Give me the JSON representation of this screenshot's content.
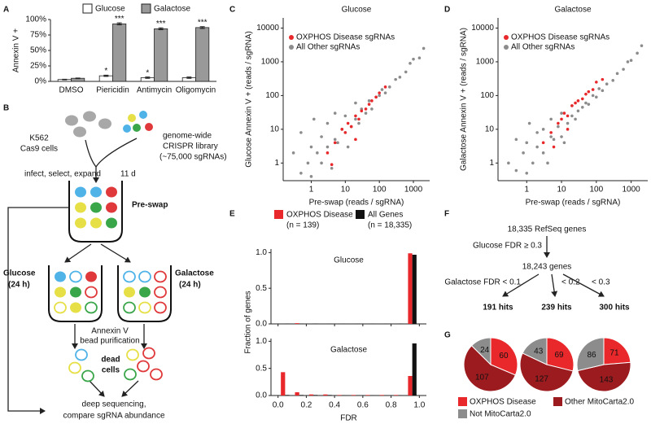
{
  "panel_labels": [
    "A",
    "B",
    "C",
    "D",
    "E",
    "F",
    "G"
  ],
  "chart_data": [
    {
      "type": "bar",
      "ylabel": "Annexin V +",
      "categories": [
        "DMSO",
        "Piericidin",
        "Antimycin",
        "Oligomycin"
      ],
      "series": [
        {
          "name": "Glucose",
          "color": "#ffffff",
          "values": [
            3,
            9,
            6,
            6
          ],
          "errors": [
            0.5,
            1,
            1,
            1
          ],
          "significance": [
            null,
            "*",
            "*",
            null
          ]
        },
        {
          "name": "Galactose",
          "color": "#999999",
          "values": [
            5,
            93,
            85,
            87
          ],
          "errors": [
            0.5,
            1.5,
            1.5,
            1.5
          ],
          "significance": [
            null,
            "***",
            "***",
            "***"
          ]
        }
      ],
      "ylim": [
        0,
        100
      ],
      "yticks": [
        {
          "value": 0,
          "label": "0%"
        },
        {
          "value": 25,
          "label": "25%"
        },
        {
          "value": 50,
          "label": "50%"
        },
        {
          "value": 75,
          "label": "75%"
        },
        {
          "value": 100,
          "label": "100%"
        }
      ]
    },
    {
      "type": "scatter",
      "title": "Glucose",
      "xlabel": "Pre-swap (reads / sgRNA)",
      "ylabel": "Glucose Annexin V + (reads / sgRNA)",
      "log": true,
      "xlim": [
        0.15,
        3000
      ],
      "ylim": [
        0.3,
        20000
      ],
      "xticks": [
        1,
        10,
        100,
        1000
      ],
      "yticks": [
        1,
        10,
        100,
        1000,
        10000
      ],
      "series": [
        {
          "name": "OXPHOS Disease sgRNAs",
          "color": "#e8282b",
          "x": [
            3,
            5,
            8,
            10,
            12,
            15,
            20,
            25,
            30,
            40,
            50,
            60,
            80,
            100,
            150,
            4,
            20
          ],
          "values": [
            2,
            4,
            10,
            8,
            15,
            12,
            25,
            20,
            35,
            40,
            55,
            70,
            90,
            120,
            180,
            0.9,
            5
          ]
        },
        {
          "name": "All Other sgRNAs",
          "color": "#8c8c8c",
          "x": [
            0.3,
            0.5,
            0.5,
            0.8,
            1,
            1,
            1.2,
            1.5,
            2,
            2,
            3,
            3,
            4,
            5,
            5,
            6,
            8,
            10,
            10,
            12,
            15,
            20,
            20,
            25,
            30,
            40,
            50,
            60,
            80,
            100,
            120,
            150,
            200,
            300,
            400,
            600,
            800,
            1000,
            1500,
            2000
          ],
          "values": [
            2,
            0.5,
            8,
            1,
            3,
            0.4,
            20,
            2,
            1,
            6,
            3,
            15,
            0.7,
            5,
            30,
            4,
            10,
            8,
            25,
            3,
            12,
            20,
            60,
            15,
            40,
            30,
            70,
            40,
            90,
            100,
            150,
            120,
            180,
            300,
            350,
            500,
            900,
            1200,
            1300,
            2500
          ]
        }
      ]
    },
    {
      "type": "scatter",
      "title": "Galactose",
      "xlabel": "Pre-swap (reads / sgRNA)",
      "ylabel": "Galactose Annexin V + (reads / sgRNA)",
      "log": true,
      "xlim": [
        0.15,
        3000
      ],
      "ylim": [
        0.3,
        20000
      ],
      "xticks": [
        1,
        10,
        100,
        1000
      ],
      "yticks": [
        1,
        10,
        100,
        1000,
        10000
      ],
      "series": [
        {
          "name": "OXPHOS Disease sgRNAs",
          "color": "#e8282b",
          "x": [
            3,
            5,
            8,
            10,
            12,
            15,
            20,
            25,
            30,
            40,
            50,
            60,
            80,
            100,
            150,
            6,
            15
          ],
          "values": [
            4,
            8,
            15,
            20,
            30,
            25,
            50,
            60,
            70,
            80,
            110,
            130,
            150,
            250,
            300,
            3,
            10
          ]
        },
        {
          "name": "All Other sgRNAs",
          "color": "#8c8c8c",
          "x": [
            0.3,
            0.5,
            0.5,
            0.8,
            1,
            1,
            1.2,
            1.5,
            2,
            2,
            3,
            3,
            4,
            5,
            5,
            6,
            8,
            10,
            10,
            12,
            15,
            20,
            20,
            25,
            30,
            40,
            50,
            60,
            80,
            100,
            120,
            150,
            200,
            300,
            400,
            600,
            800,
            1000,
            1500,
            2000
          ],
          "values": [
            1,
            0.6,
            5,
            2,
            0.5,
            4,
            15,
            1,
            3,
            8,
            2,
            10,
            1,
            6,
            20,
            5,
            12,
            6,
            30,
            4,
            15,
            25,
            50,
            20,
            35,
            45,
            60,
            55,
            100,
            90,
            160,
            140,
            220,
            280,
            450,
            600,
            1000,
            1100,
            1800,
            3000
          ]
        }
      ]
    },
    {
      "type": "histogram",
      "xlabel": "FDR",
      "ylabel": "Fraction of genes",
      "bins": [
        0,
        0.1,
        0.2,
        0.3,
        0.4,
        0.5,
        0.6,
        0.7,
        0.8,
        0.9,
        1
      ],
      "xlim": [
        -0.05,
        1.05
      ],
      "xticks": [
        {
          "value": 0,
          "label": "0.0"
        },
        0.2,
        0.4,
        0.6,
        0.8,
        {
          "value": 1,
          "label": "1.0"
        }
      ],
      "ylim": [
        0,
        1.05
      ],
      "yticks": [
        {
          "value": 0,
          "label": "0.0"
        },
        0.5,
        {
          "value": 1,
          "label": "1.0"
        }
      ],
      "series": [
        {
          "name": "OXPHOS Disease",
          "note": "(n = 139)",
          "color": "#e8282b"
        },
        {
          "name": "All Genes",
          "note": "(n = 18,335)",
          "color": "#111111"
        }
      ],
      "facets": [
        {
          "title": "Glucose",
          "values": [
            [
              0,
              0.01,
              0,
              0,
              0,
              0,
              0,
              0,
              0,
              0.99
            ],
            [
              0.005,
              0.005,
              0.005,
              0.003,
              0.003,
              0.003,
              0.003,
              0.003,
              0.005,
              0.97
            ]
          ]
        },
        {
          "title": "Galactose",
          "values": [
            [
              0.43,
              0.06,
              0.02,
              0.02,
              0.01,
              0.01,
              0.01,
              0.01,
              0.01,
              0.36
            ],
            [
              0.01,
              0.01,
              0.01,
              0.01,
              0.005,
              0.005,
              0.005,
              0.005,
              0.005,
              0.96
            ]
          ]
        }
      ]
    },
    {
      "type": "pie",
      "series": [
        {
          "name": "OXPHOS Disease",
          "color": "#e8282b",
          "values": [
            60,
            69,
            71
          ]
        },
        {
          "name": "Other MitoCarta2.0",
          "color": "#9b1b1f",
          "values": [
            107,
            127,
            143
          ]
        },
        {
          "name": "Not MitoCarta2.0",
          "color": "#8c8c8c",
          "values": [
            24,
            43,
            86
          ]
        }
      ]
    }
  ],
  "diagram_b": {
    "cells_label": [
      "K562",
      "Cas9 cells"
    ],
    "library_label": [
      "genome-wide",
      "CRISPR library",
      "(~75,000 sgRNAs)"
    ],
    "step": "infect, select, expand",
    "duration": "11 d",
    "pre_swap": "Pre-swap",
    "glucose": [
      "Glucose",
      "(24 h)"
    ],
    "galactose": [
      "Galactose",
      "(24 h)"
    ],
    "purification": [
      "Annexin V",
      "bead purification"
    ],
    "dead_cells": [
      "dead",
      "cells"
    ],
    "readout": [
      "deep sequencing,",
      "compare sgRNA abundance"
    ]
  },
  "diagram_f": {
    "total": "18,335 RefSeq genes",
    "filter": "Glucose FDR ≥ 0.3",
    "remaining": "18,243 genes",
    "thresholds": [
      "Galactose FDR < 0.1",
      "< 0.2",
      "< 0.3"
    ],
    "hits": [
      "191 hits",
      "239 hits",
      "300 hits"
    ]
  }
}
